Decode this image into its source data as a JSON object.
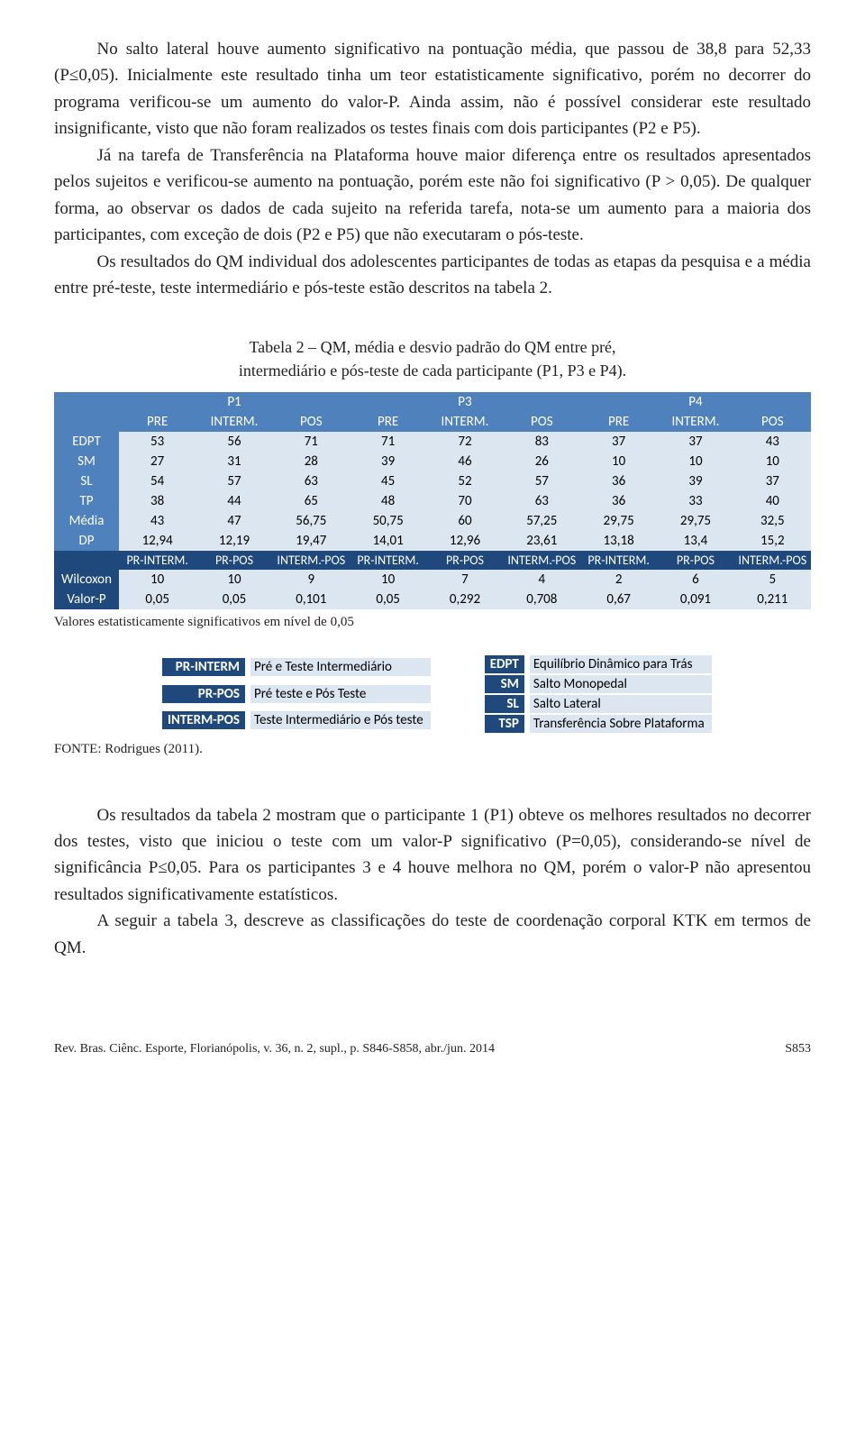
{
  "paragraphs": {
    "p1": "No salto lateral houve aumento significativo na pontuação média, que passou de 38,8 para 52,33 (P≤0,05). Inicialmente este resultado tinha um teor estatisticamente significativo, porém no decorrer do programa verificou-se um aumento do valor-P. Ainda assim, não é possível considerar este resultado insignificante, visto que não foram realizados os testes finais com dois participantes (P2 e P5).",
    "p2": "Já na tarefa de Transferência na Plataforma houve maior diferença entre os resultados apresentados pelos sujeitos e verificou-se aumento na pontuação, porém este não foi significativo (P > 0,05). De qualquer forma, ao observar os dados de cada sujeito na referida tarefa, nota-se um aumento para a maioria dos participantes, com exceção de dois (P2 e P5) que não executaram o pós-teste.",
    "p3": "Os resultados do QM individual dos adolescentes participantes de todas as etapas da pesquisa e a média entre pré-teste, teste intermediário e pós-teste estão descritos na tabela 2.",
    "p4": "Os resultados da tabela 2 mostram que o participante 1 (P1) obteve os melhores resultados no decorrer dos testes, visto que iniciou o teste com um valor-P significativo (P=0,05), considerando-se nível de significância P≤0,05. Para os participantes 3 e 4 houve melhora no QM, porém o valor-P não apresentou resultados significativamente estatísticos.",
    "p5": "A seguir a tabela 3, descreve as classificações do teste de coordenação corporal KTK em termos de QM."
  },
  "table": {
    "caption_line1": "Tabela 2 – QM, média e desvio padrão do QM entre pré,",
    "caption_line2": "intermediário e pós-teste de cada participante (P1, P3 e P4).",
    "groups": [
      "P1",
      "P3",
      "P4"
    ],
    "subheaders": [
      "PRE",
      "INTERM.",
      "POS",
      "PRE",
      "INTERM.",
      "POS",
      "PRE",
      "INTERM.",
      "POS"
    ],
    "rows": [
      {
        "label": "EDPT",
        "vals": [
          "53",
          "56",
          "71",
          "71",
          "72",
          "83",
          "37",
          "37",
          "43"
        ]
      },
      {
        "label": "SM",
        "vals": [
          "27",
          "31",
          "28",
          "39",
          "46",
          "26",
          "10",
          "10",
          "10"
        ]
      },
      {
        "label": "SL",
        "vals": [
          "54",
          "57",
          "63",
          "45",
          "52",
          "57",
          "36",
          "39",
          "37"
        ]
      },
      {
        "label": "TP",
        "vals": [
          "38",
          "44",
          "65",
          "48",
          "70",
          "63",
          "36",
          "33",
          "40"
        ]
      },
      {
        "label": "Média",
        "vals": [
          "43",
          "47",
          "56,75",
          "50,75",
          "60",
          "57,25",
          "29,75",
          "29,75",
          "32,5"
        ]
      },
      {
        "label": "DP",
        "vals": [
          "12,94",
          "12,19",
          "19,47",
          "14,01",
          "12,96",
          "23,61",
          "13,18",
          "13,4",
          "15,2"
        ]
      }
    ],
    "subheaders2": [
      "PR-INTERM.",
      "PR-POS",
      "INTERM.-POS",
      "PR-INTERM.",
      "PR-POS",
      "INTERM.-POS",
      "PR-INTERM.",
      "PR-POS",
      "INTERM.-POS"
    ],
    "rows2": [
      {
        "label": "Wilcoxon",
        "vals": [
          "10",
          "10",
          "9",
          "10",
          "7",
          "4",
          "2",
          "6",
          "5"
        ]
      },
      {
        "label": "Valor-P",
        "vals": [
          "0,05",
          "0,05",
          "0,101",
          "0,05",
          "0,292",
          "0,708",
          "0,67",
          "0,091",
          "0,211"
        ]
      }
    ],
    "colors": {
      "header_bg": "#4f81bd",
      "header_dark_bg": "#1f497d",
      "cell_bg": "#dce6f1",
      "header_fg": "#ffffff",
      "cell_fg": "#000000"
    },
    "footnote": "Valores estatisticamente significativos em nível de 0,05"
  },
  "legend": {
    "left": [
      {
        "key": "PR-INTERM",
        "val": "Pré e Teste Intermediário"
      },
      {
        "key": "PR-POS",
        "val": "Pré teste e Pós Teste"
      },
      {
        "key": "INTERM-POS",
        "val": "Teste Intermediário e Pós teste"
      }
    ],
    "right": [
      {
        "key": "EDPT",
        "val": "Equilíbrio Dinâmico para Trás"
      },
      {
        "key": "SM",
        "val": "Salto Monopedal"
      },
      {
        "key": "SL",
        "val": "Salto Lateral"
      },
      {
        "key": "TSP",
        "val": "Transferência Sobre Plataforma"
      }
    ]
  },
  "source": "FONTE: Rodrigues (2011).",
  "footer": {
    "left": "Rev. Bras. Ciênc. Esporte, Florianópolis, v. 36, n. 2, supl., p. S846-S858, abr./jun. 2014",
    "right": "S853"
  }
}
